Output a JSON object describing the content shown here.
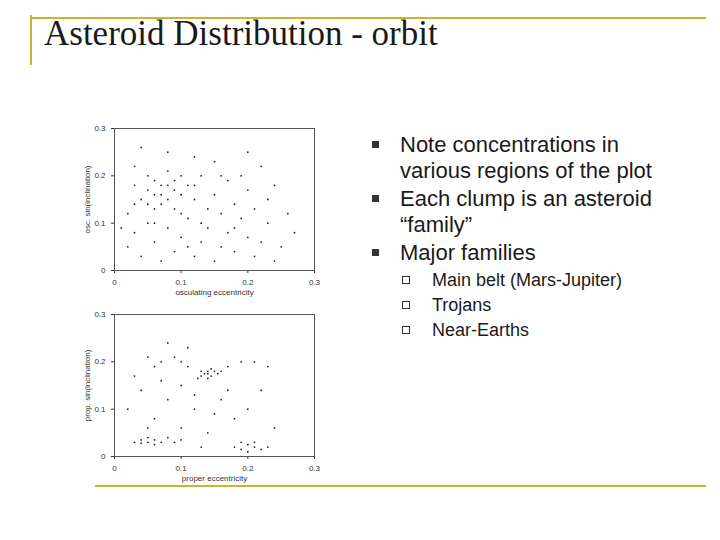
{
  "title": "Asteroid Distribution - orbit",
  "bullets": [
    "Note concentrations in various regions of the plot",
    "Each clump is an asteroid “family”",
    "Major families"
  ],
  "sub_bullets": [
    "Main belt (Mars-Jupiter)",
    "Trojans",
    "Near-Earths"
  ],
  "chart_data": [
    {
      "type": "scatter",
      "x_label": "osculating eccentricity",
      "y_label": "osc. sin(inclination)",
      "color": "#222222",
      "xlim": [
        0,
        0.3
      ],
      "ylim": [
        0,
        0.3
      ],
      "xticks": [
        0,
        0.1,
        0.2,
        0.3
      ],
      "yticks": [
        0,
        0.1,
        0.2,
        0.3
      ],
      "x": [
        0.05,
        0.06,
        0.07,
        0.08,
        0.06,
        0.09,
        0.07,
        0.05,
        0.08,
        0.1,
        0.04,
        0.06,
        0.09,
        0.11,
        0.07,
        0.08,
        0.05,
        0.1,
        0.12,
        0.03,
        0.02,
        0.03,
        0.04,
        0.05,
        0.06,
        0.07,
        0.08,
        0.09,
        0.1,
        0.11,
        0.12,
        0.13,
        0.14,
        0.15,
        0.16,
        0.17,
        0.18,
        0.19,
        0.2,
        0.21,
        0.22,
        0.23,
        0.24,
        0.25,
        0.14,
        0.15,
        0.16,
        0.17,
        0.18,
        0.19,
        0.2,
        0.21,
        0.22,
        0.23,
        0.13,
        0.12,
        0.08,
        0.15,
        0.2,
        0.02,
        0.03,
        0.01,
        0.26,
        0.27,
        0.24,
        0.04,
        0.1,
        0.11,
        0.06,
        0.03,
        0.13,
        0.16,
        0.18,
        0.09,
        0.12
      ],
      "values": [
        0.17,
        0.16,
        0.18,
        0.15,
        0.19,
        0.17,
        0.14,
        0.2,
        0.21,
        0.16,
        0.15,
        0.13,
        0.19,
        0.18,
        0.16,
        0.18,
        0.14,
        0.2,
        0.15,
        0.18,
        0.05,
        0.08,
        0.03,
        0.1,
        0.06,
        0.02,
        0.09,
        0.04,
        0.07,
        0.11,
        0.03,
        0.06,
        0.09,
        0.02,
        0.05,
        0.08,
        0.04,
        0.11,
        0.07,
        0.03,
        0.06,
        0.1,
        0.02,
        0.05,
        0.13,
        0.16,
        0.12,
        0.19,
        0.14,
        0.2,
        0.17,
        0.13,
        0.22,
        0.15,
        0.2,
        0.24,
        0.25,
        0.23,
        0.25,
        0.12,
        0.22,
        0.09,
        0.12,
        0.08,
        0.18,
        0.26,
        0.12,
        0.05,
        0.1,
        0.14,
        0.1,
        0.2,
        0.09,
        0.13,
        0.18
      ]
    },
    {
      "type": "scatter",
      "x_label": "proper eccentricity",
      "y_label": "prop. sin(inclination)",
      "color": "#222222",
      "xlim": [
        0,
        0.3
      ],
      "ylim": [
        0,
        0.3
      ],
      "xticks": [
        0,
        0.1,
        0.2,
        0.3
      ],
      "yticks": [
        0,
        0.1,
        0.2,
        0.3
      ],
      "x": [
        0.13,
        0.14,
        0.135,
        0.145,
        0.15,
        0.14,
        0.13,
        0.155,
        0.14,
        0.125,
        0.16,
        0.145,
        0.05,
        0.07,
        0.09,
        0.11,
        0.17,
        0.19,
        0.21,
        0.23,
        0.06,
        0.1,
        0.03,
        0.04,
        0.05,
        0.06,
        0.07,
        0.08,
        0.09,
        0.05,
        0.06,
        0.1,
        0.04,
        0.18,
        0.19,
        0.2,
        0.21,
        0.2,
        0.22,
        0.19,
        0.21,
        0.23,
        0.02,
        0.04,
        0.06,
        0.08,
        0.1,
        0.12,
        0.14,
        0.16,
        0.18,
        0.2,
        0.22,
        0.24,
        0.12,
        0.1,
        0.07,
        0.03,
        0.17,
        0.15,
        0.11,
        0.08,
        0.05,
        0.13
      ],
      "values": [
        0.17,
        0.18,
        0.175,
        0.17,
        0.18,
        0.165,
        0.18,
        0.175,
        0.175,
        0.165,
        0.18,
        0.185,
        0.21,
        0.2,
        0.21,
        0.19,
        0.19,
        0.2,
        0.2,
        0.19,
        0.19,
        0.2,
        0.03,
        0.035,
        0.03,
        0.035,
        0.03,
        0.04,
        0.03,
        0.04,
        0.025,
        0.035,
        0.028,
        0.02,
        0.015,
        0.025,
        0.02,
        0.01,
        0.015,
        0.03,
        0.03,
        0.02,
        0.1,
        0.14,
        0.08,
        0.12,
        0.06,
        0.1,
        0.05,
        0.12,
        0.08,
        0.1,
        0.14,
        0.06,
        0.13,
        0.15,
        0.16,
        0.17,
        0.14,
        0.09,
        0.23,
        0.24,
        0.06,
        0.02
      ]
    }
  ]
}
